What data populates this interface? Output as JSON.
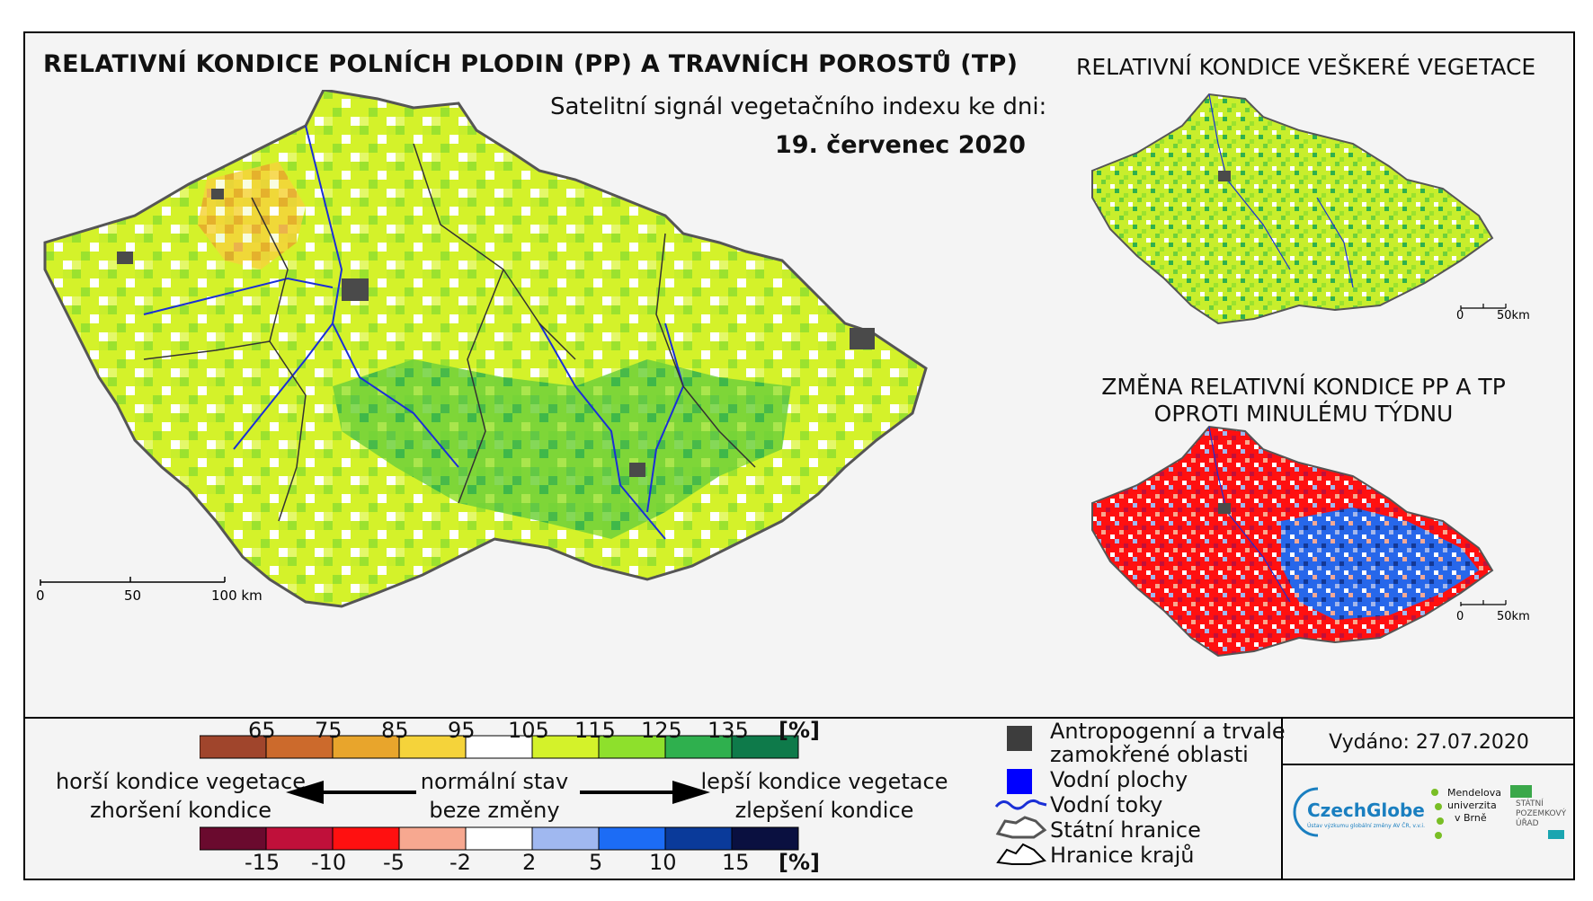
{
  "main_title": "RELATIVNÍ KONDICE POLNÍCH PLODIN (PP) A TRAVNÍCH POROSTŮ (TP)",
  "signal_label": "Satelitní signál vegetačního indexu ke dni:",
  "date": "19. červenec 2020",
  "right_top_title": "RELATIVNÍ KONDICE VEŠKERÉ VEGETACE",
  "right_bottom_title_line1": "ZMĚNA RELATIVNÍ KONDICE PP A TP",
  "right_bottom_title_line2": "OPROTI MINULÉMU TÝDNU",
  "main_scalebar": {
    "labels": [
      "0",
      "50",
      "100 km"
    ]
  },
  "small_scalebar": {
    "labels": [
      "0",
      "50km"
    ]
  },
  "condition_legend": {
    "ticks": [
      "65",
      "75",
      "85",
      "95",
      "105",
      "115",
      "125",
      "135"
    ],
    "unit": "[%]",
    "colors": [
      "#a0452c",
      "#cc6a2c",
      "#e8a52c",
      "#f5d33a",
      "#ffffff",
      "#d4f22a",
      "#8ee02c",
      "#2fb04e",
      "#0e7a4a"
    ]
  },
  "change_legend": {
    "ticks": [
      "-15",
      "-10",
      "-5",
      "-2",
      "2",
      "5",
      "10",
      "15"
    ],
    "unit": "[%]",
    "colors": [
      "#6a0a2e",
      "#c0103a",
      "#ff1010",
      "#f7a890",
      "#ffffff",
      "#a0b8f0",
      "#1c6cf5",
      "#0a3a9a",
      "#0a1040"
    ]
  },
  "arrows": {
    "left_line1": "horší kondice vegetace",
    "left_line2": "zhoršení kondice",
    "mid_line1": "normální stav",
    "mid_line2": "beze změny",
    "right_line1": "lepší kondice vegetace",
    "right_line2": "zlepšení kondice"
  },
  "symbol_legend": {
    "anthropogenic_line1": "Antropogenní a trvale",
    "anthropogenic_line2": "zamokřené oblasti",
    "water_bodies": "Vodní plochy",
    "water_streams": "Vodní toky",
    "state_border": "Státní hranice",
    "region_border": "Hranice krajů"
  },
  "issued": "Vydáno: 27.07.2020",
  "logos": {
    "czechglobe": "CzechGlobe",
    "czechglobe_sub": "Ústav výzkumu globální změny AV ČR, v.v.i.",
    "mendel_line1": "Mendelova",
    "mendel_line2": "univerzita",
    "mendel_line3": "v Brně",
    "spu_line1": "STÁTNÍ",
    "spu_line2": "POZEMKOVÝ",
    "spu_line3": "ÚŘAD"
  },
  "colors": {
    "map_green": "#9be22e",
    "map_yellow_green": "#d4f22a",
    "map_dark_green": "#2fb04e",
    "river_blue": "#1a2fd6",
    "urban_gray": "#4a4a4a"
  }
}
